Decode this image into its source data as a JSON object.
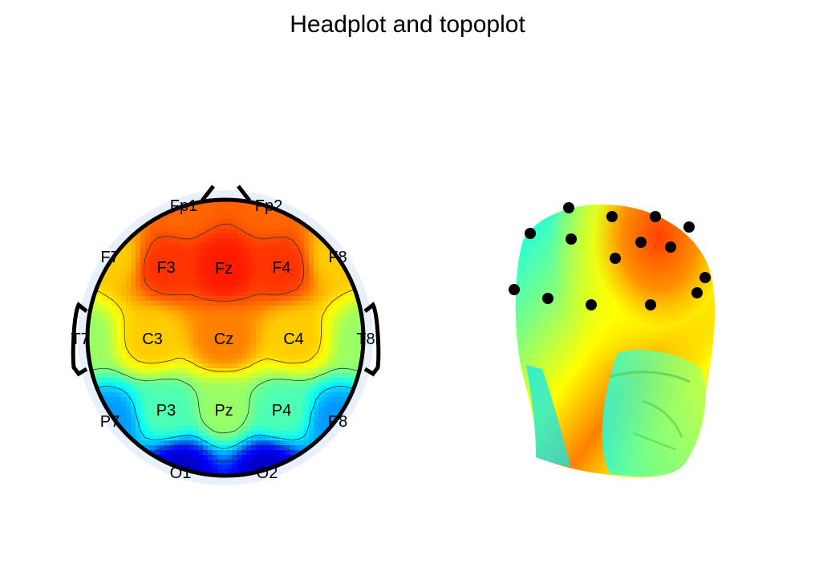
{
  "figure": {
    "title": "Headplot and topoplot"
  },
  "chart_data": [
    {
      "type": "heatmap",
      "subtype": "topoplot",
      "colormap": "jet",
      "color_range": [
        -1,
        1
      ],
      "contour_levels": [
        -0.6,
        -0.3,
        0.0,
        0.3,
        0.6
      ],
      "electrodes": [
        {
          "label": "Fp1",
          "value": 0.55
        },
        {
          "label": "Fp2",
          "value": 0.55
        },
        {
          "label": "F7",
          "value": 0.35
        },
        {
          "label": "F3",
          "value": 0.65
        },
        {
          "label": "Fz",
          "value": 0.7
        },
        {
          "label": "F4",
          "value": 0.65
        },
        {
          "label": "F8",
          "value": 0.35
        },
        {
          "label": "T7",
          "value": 0.05
        },
        {
          "label": "C3",
          "value": 0.35
        },
        {
          "label": "Cz",
          "value": 0.5
        },
        {
          "label": "C4",
          "value": 0.35
        },
        {
          "label": "T8",
          "value": 0.05
        },
        {
          "label": "P7",
          "value": -0.45
        },
        {
          "label": "P3",
          "value": -0.1
        },
        {
          "label": "Pz",
          "value": 0.05
        },
        {
          "label": "P4",
          "value": -0.1
        },
        {
          "label": "P8",
          "value": -0.45
        },
        {
          "label": "O1",
          "value": -0.85
        },
        {
          "label": "O2",
          "value": -0.85
        }
      ]
    },
    {
      "type": "heatmap",
      "subtype": "headplot",
      "colormap": "jet",
      "view": "3D head, frontal-right oblique",
      "markers": 15
    }
  ]
}
